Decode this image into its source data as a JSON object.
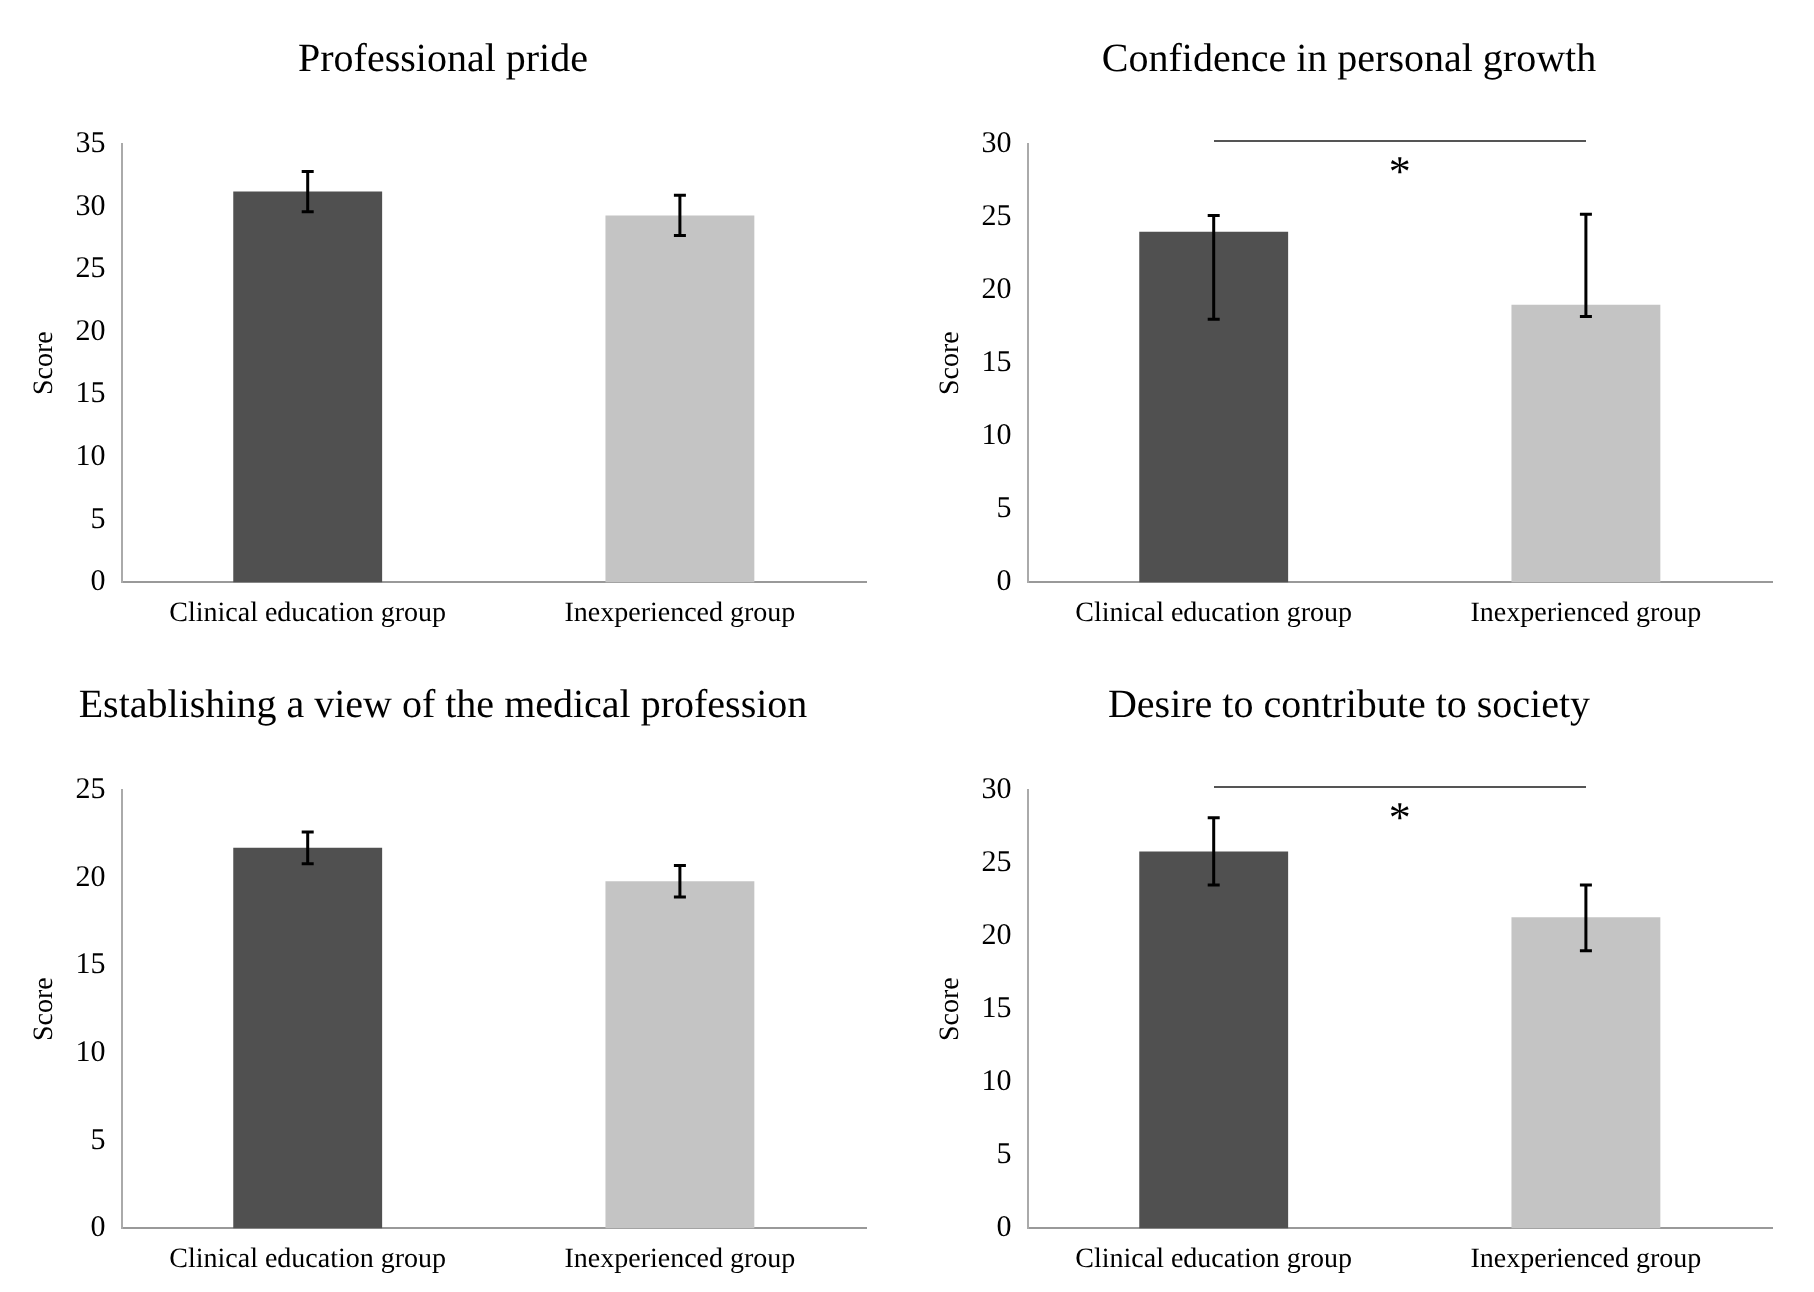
{
  "chart_data": [
    {
      "type": "bar",
      "title": "Professional pride",
      "ylabel": "Score",
      "categories": [
        "Clinical education group",
        "Inexperienced group"
      ],
      "values": [
        31.2,
        29.3
      ],
      "colors": [
        "#505050",
        "#c4c4c4"
      ],
      "errors": [
        1.6,
        1.6
      ],
      "ylim": [
        0,
        35
      ],
      "yticks": [
        0,
        5,
        10,
        15,
        20,
        25,
        30,
        35
      ],
      "grid": false,
      "legend": false
    },
    {
      "type": "bar",
      "title": "Confidence in personal growth",
      "ylabel": "Score",
      "categories": [
        "Clinical education group",
        "Inexperienced group"
      ],
      "values": [
        24.0,
        19.0
      ],
      "colors": [
        "#505050",
        "#c4c4c4"
      ],
      "errors": [
        [
          18.0,
          25.1
        ],
        [
          18.2,
          25.2
        ]
      ],
      "ylim": [
        0,
        30
      ],
      "yticks": [
        0,
        5,
        10,
        15,
        20,
        25,
        30
      ],
      "grid": false,
      "legend": false,
      "annotations": [
        "*"
      ]
    },
    {
      "type": "bar",
      "title": "Establishing a view of the medical profession",
      "ylabel": "Score",
      "categories": [
        "Clinical education group",
        "Inexperienced group"
      ],
      "values": [
        21.7,
        19.8
      ],
      "colors": [
        "#505050",
        "#c4c4c4"
      ],
      "errors": [
        0.9,
        0.9
      ],
      "ylim": [
        0,
        25
      ],
      "yticks": [
        0,
        5,
        10,
        15,
        20,
        25
      ],
      "grid": false,
      "legend": false
    },
    {
      "type": "bar",
      "title": "Desire to contribute to society",
      "ylabel": "Score",
      "categories": [
        "Clinical education group",
        "Inexperienced group"
      ],
      "values": [
        25.8,
        21.3
      ],
      "colors": [
        "#505050",
        "#c4c4c4"
      ],
      "errors": [
        2.3,
        [
          19.0,
          23.5
        ]
      ],
      "ylim": [
        0,
        30
      ],
      "yticks": [
        0,
        5,
        10,
        15,
        20,
        25,
        30
      ],
      "grid": false,
      "legend": false,
      "annotations": [
        "*"
      ]
    }
  ]
}
